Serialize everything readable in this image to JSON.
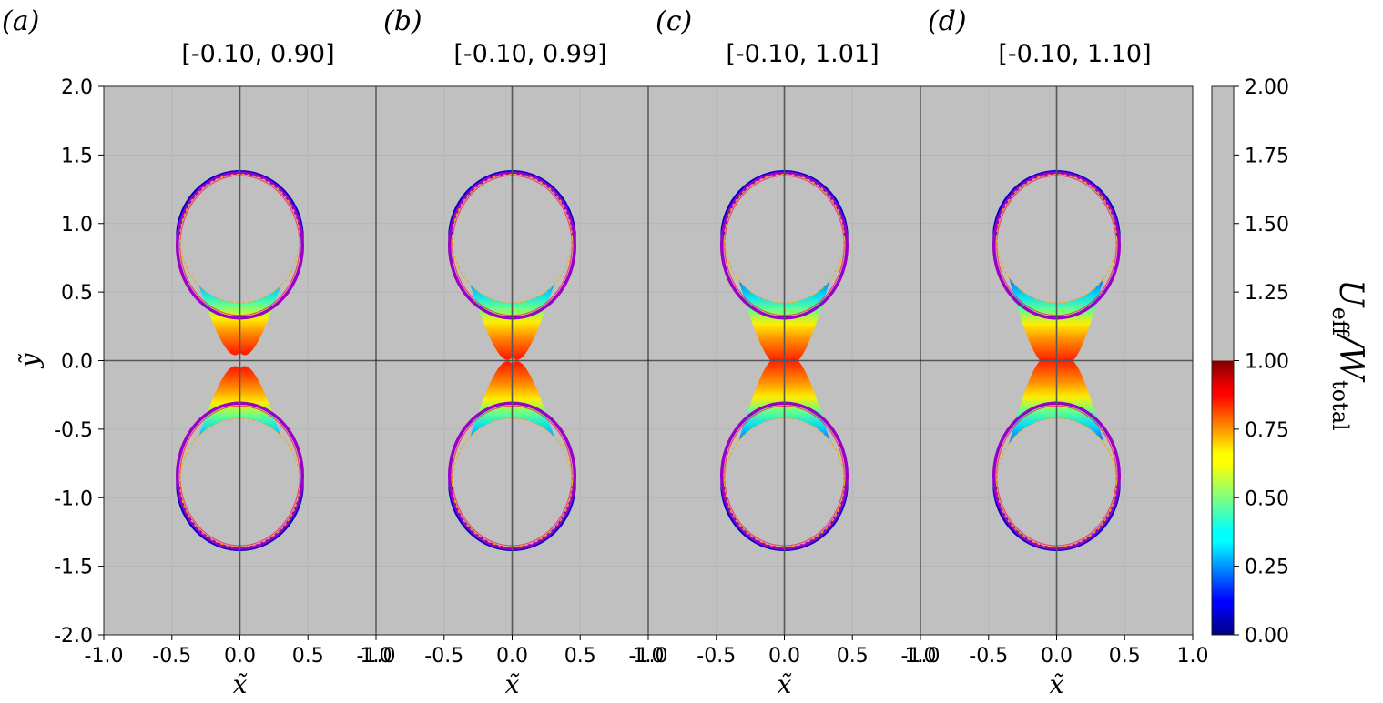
{
  "chart_data": {
    "type": "heatmap",
    "panels": [
      {
        "letter": "(a)",
        "title": "[-0.10, 0.90]",
        "params": [
          -0.1,
          0.9
        ]
      },
      {
        "letter": "(b)",
        "title": "[-0.10, 0.99]",
        "params": [
          -0.1,
          0.99
        ]
      },
      {
        "letter": "(c)",
        "title": "[-0.10, 1.01]",
        "params": [
          -0.1,
          1.01
        ]
      },
      {
        "letter": "(d)",
        "title": "[-0.10, 1.10]",
        "params": [
          -0.1,
          1.1
        ]
      }
    ],
    "xlabel": "x̃",
    "ylabel": "ỹ",
    "xlim": [
      -1.0,
      1.0
    ],
    "ylim": [
      -2.0,
      2.0
    ],
    "xticks": [
      -1.0,
      -0.5,
      0.0,
      0.5,
      1.0
    ],
    "xtick_labels": [
      "-1.0",
      "-0.5",
      "0.0",
      "0.5",
      "1.0"
    ],
    "yticks": [
      -2.0,
      -1.5,
      -1.0,
      -0.5,
      0.0,
      0.5,
      1.0,
      1.5,
      2.0
    ],
    "ytick_labels": [
      "-2.0",
      "-1.5",
      "-1.0",
      "-0.5",
      "0.0",
      "0.5",
      "1.0",
      "1.5",
      "2.0"
    ],
    "background_color": "#c0c0c0",
    "colorbar": {
      "label": "Ueff/Wtotal",
      "label_main": "U",
      "label_sub1": "eff",
      "label_sep": "/W",
      "label_sub2": "total",
      "range": [
        0.0,
        2.0
      ],
      "ticks": [
        0.0,
        0.25,
        0.5,
        0.75,
        1.0,
        1.25,
        1.5,
        1.75,
        2.0
      ],
      "tick_labels": [
        "0.00",
        "0.25",
        "0.50",
        "0.75",
        "1.00",
        "1.25",
        "1.50",
        "1.75",
        "2.00"
      ],
      "colormap": "jet",
      "saturated_color": "#c0c0c0"
    }
  }
}
